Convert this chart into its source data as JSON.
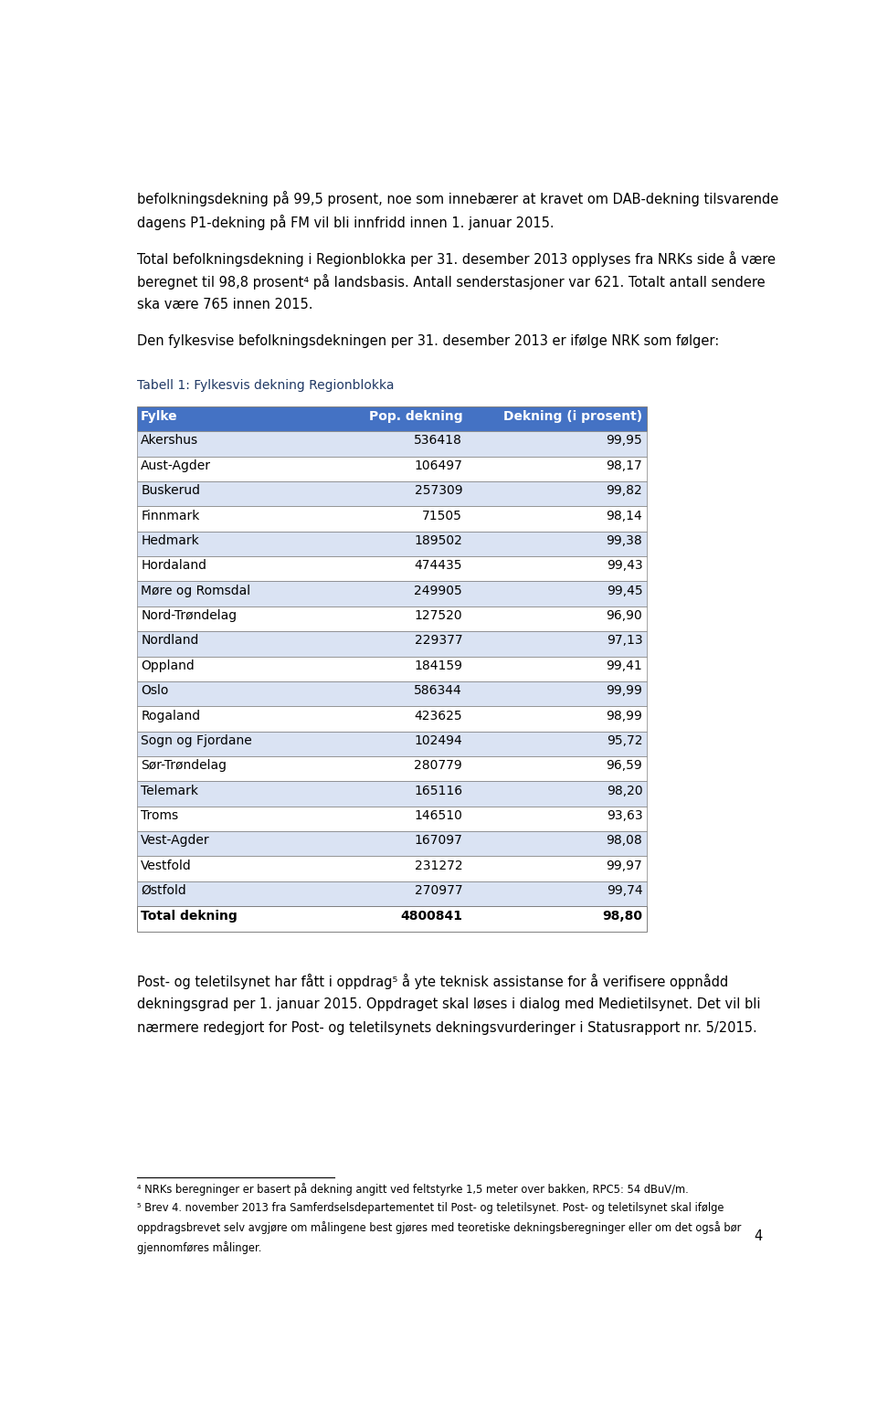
{
  "para1": "befolkningsdekning på 99,5 prosent, noe som innebærer at kravet om DAB-dekning tilsvarende\ndagens P1-dekning på FM vil bli innfridd innen 1. januar 2015.",
  "para2": "Total befolkningsdekning i Regionblokka per 31. desember 2013 opplyses fra NRKs side å være\nberegnet til 98,8 prosent⁴ på landsbasis. Antall senderstasjoner var 621. Totalt antall sendere\nska være 765 innen 2015.",
  "para3": "Den fylkesvise befolkningsdekningen per 31. desember 2013 er ifølge NRK som følger:",
  "table_title": "Tabell 1: Fylkesvis dekning Regionblokka",
  "col_headers": [
    "Fylke",
    "Pop. dekning",
    "Dekning (i prosent)"
  ],
  "rows": [
    [
      "Akershus",
      "536418",
      "99,95"
    ],
    [
      "Aust-Agder",
      "106497",
      "98,17"
    ],
    [
      "Buskerud",
      "257309",
      "99,82"
    ],
    [
      "Finnmark",
      "71505",
      "98,14"
    ],
    [
      "Hedmark",
      "189502",
      "99,38"
    ],
    [
      "Hordaland",
      "474435",
      "99,43"
    ],
    [
      "Møre og Romsdal",
      "249905",
      "99,45"
    ],
    [
      "Nord-Trøndelag",
      "127520",
      "96,90"
    ],
    [
      "Nordland",
      "229377",
      "97,13"
    ],
    [
      "Oppland",
      "184159",
      "99,41"
    ],
    [
      "Oslo",
      "586344",
      "99,99"
    ],
    [
      "Rogaland",
      "423625",
      "98,99"
    ],
    [
      "Sogn og Fjordane",
      "102494",
      "95,72"
    ],
    [
      "Sør-Trøndelag",
      "280779",
      "96,59"
    ],
    [
      "Telemark",
      "165116",
      "98,20"
    ],
    [
      "Troms",
      "146510",
      "93,63"
    ],
    [
      "Vest-Agder",
      "167097",
      "98,08"
    ],
    [
      "Vestfold",
      "231272",
      "99,97"
    ],
    [
      "Østfold",
      "270977",
      "99,74"
    ]
  ],
  "total_row": [
    "Total dekning",
    "4800841",
    "98,80"
  ],
  "para4": "Post- og teletilsynet har fått i oppdrag⁵ å yte teknisk assistanse for å verifisere oppnådd\ndekningsgrad per 1. januar 2015. Oppdraget skal løses i dialog med Medietilsynet. Det vil bli\nnærmere redegjort for Post- og teletilsynets dekningsvurderinger i Statusrapport nr. 5/2015.",
  "footnote1": "⁴ NRKs beregninger er basert på dekning angitt ved feltstyrke 1,5 meter over bakken, RPC5: 54 dBuV/m.",
  "footnote2_lines": [
    "⁵ Brev 4. november 2013 fra Samferdselsdepartementet til Post- og teletilsynet. Post- og teletilsynet skal ifølge",
    "oppdragsbrevet selv avgjøre om målingene best gjøres med teoretiske dekningsberegninger eller om det også bør",
    "gjennomføres målinger."
  ],
  "page_number": "4",
  "header_bg": "#4472C4",
  "header_text": "#FFFFFF",
  "row_bg_even": "#DAE3F3",
  "row_bg_odd": "#FFFFFF",
  "border_color": "#7F7F7F",
  "table_title_color": "#1F3864",
  "body_text_color": "#000000",
  "background_color": "#FFFFFF"
}
